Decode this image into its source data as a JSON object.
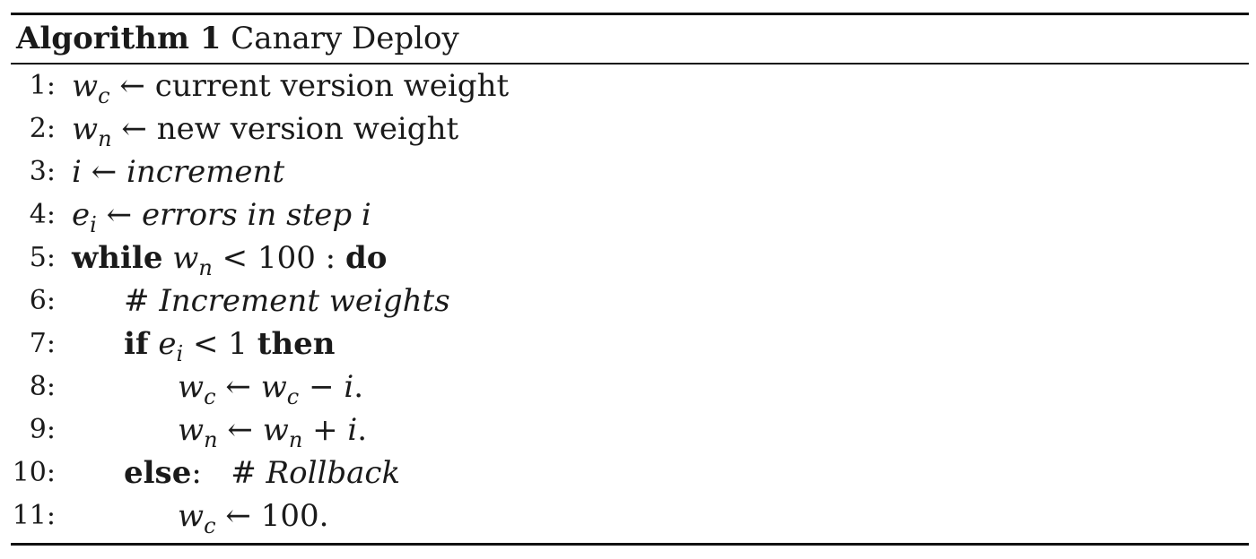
{
  "algorithm": {
    "label": "Algorithm 1",
    "title": "Canary Deploy"
  },
  "symbols": {
    "arrow": "←",
    "hash": "#",
    "minus": "−",
    "plus": "+",
    "less": "<"
  },
  "lines": [
    {
      "num": "1:",
      "var": "w",
      "sub": "c",
      "text": "current version weight"
    },
    {
      "num": "2:",
      "var": "w",
      "sub": "n",
      "text": "new version weight"
    },
    {
      "num": "3:",
      "var": "i",
      "text": "increment"
    },
    {
      "num": "4:",
      "var": "e",
      "sub": "i",
      "text": "errors in step i"
    },
    {
      "num": "5:",
      "kw": "while",
      "var": "w",
      "sub": "n",
      "value": "100 :",
      "kw2": "do"
    },
    {
      "num": "6:",
      "comment": "Increment weights"
    },
    {
      "num": "7:",
      "kw": "if",
      "var": "e",
      "sub": "i",
      "value": "1",
      "kw2": "then"
    },
    {
      "num": "8:",
      "var": "w",
      "sub": "c",
      "rhs_var": "w",
      "rhs_sub": "c",
      "rhs_tail": "i",
      "end": "."
    },
    {
      "num": "9:",
      "var": "w",
      "sub": "n",
      "rhs_var": "w",
      "rhs_sub": "n",
      "rhs_tail": "i",
      "end": "."
    },
    {
      "num": "10:",
      "kw": "else",
      "punct": ":",
      "comment": "Rollback"
    },
    {
      "num": "11:",
      "var": "w",
      "sub": "c",
      "value": "100."
    }
  ]
}
